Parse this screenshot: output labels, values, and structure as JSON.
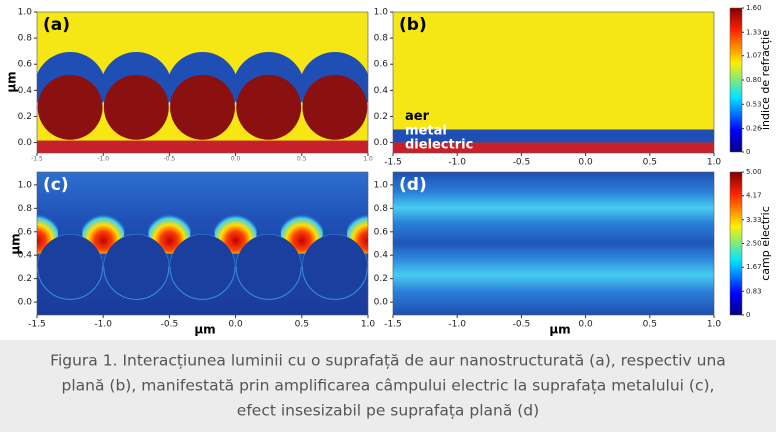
{
  "ylabel": "µm",
  "xlabel": "µm",
  "panels": [
    {
      "label": "(a)",
      "xlim": [
        -1.5,
        1.0
      ],
      "ylim": [
        -0.08,
        1.0
      ],
      "xticks": [
        -1.5,
        {
          "value": -1.0,
          "label": "-1.0"
        },
        -0.5,
        {
          "value": 0.0,
          "label": "0.0"
        },
        0.5,
        {
          "value": 1.0,
          "label": "1.0"
        }
      ],
      "yticks": [
        {
          "value": 1.0,
          "label": "1.0"
        },
        0.8,
        0.6,
        0.4,
        0.2,
        {
          "value": 0.0,
          "label": "0.0"
        }
      ]
    },
    {
      "label": "(b)",
      "xlim": [
        -1.5,
        1.0
      ],
      "ylim": [
        -0.08,
        1.0
      ],
      "xticks": [
        -1.5,
        {
          "value": -1.0,
          "label": "-1.0"
        },
        -0.5,
        {
          "value": 0.0,
          "label": "0.0"
        },
        0.5,
        {
          "value": 1.0,
          "label": "1.0"
        }
      ],
      "yticks": [
        {
          "value": 1.0,
          "label": "1.0"
        },
        0.8,
        0.6,
        0.4,
        0.2,
        {
          "value": 0.0,
          "label": "0.0"
        }
      ],
      "annotations": [
        "aer",
        "metal",
        "dielectric"
      ]
    },
    {
      "label": "(c)",
      "xlim": [
        -1.5,
        1.0
      ],
      "ylim": [
        -0.11,
        1.11
      ],
      "xticks": [
        -1.5,
        {
          "value": -1.0,
          "label": "-1.0"
        },
        -0.5,
        {
          "value": 0.0,
          "label": "0.0"
        },
        0.5,
        {
          "value": 1.0,
          "label": "1.0"
        }
      ],
      "yticks": [
        {
          "value": 1.0,
          "label": "1.0"
        },
        0.8,
        0.6,
        0.4,
        0.2,
        {
          "value": 0.0,
          "label": "0.0"
        }
      ]
    },
    {
      "label": "(d)",
      "xlim": [
        -1.5,
        1.0
      ],
      "ylim": [
        -0.11,
        1.11
      ],
      "xticks": [
        -1.5,
        {
          "value": -1.0,
          "label": "-1.0"
        },
        -0.5,
        {
          "value": 0.0,
          "label": "0.0"
        },
        0.5,
        {
          "value": 1.0,
          "label": "1.0"
        }
      ],
      "yticks": [
        {
          "value": 1.0,
          "label": "1.0"
        },
        0.8,
        0.6,
        0.4,
        0.2,
        {
          "value": 0.0,
          "label": "0.0"
        }
      ]
    }
  ],
  "colorbars": [
    {
      "title": "indice de refracție",
      "lim": [
        0,
        1.6
      ],
      "ticks": [
        {
          "value": 1.6,
          "label": "1.60"
        },
        1.33,
        1.07,
        {
          "value": 0.8,
          "label": "0.80"
        },
        0.53,
        0.26,
        0
      ]
    },
    {
      "title": "camp electric",
      "lim": [
        0,
        5.0
      ],
      "ticks": [
        {
          "value": 5.0,
          "label": "5.00"
        },
        4.17,
        3.33,
        {
          "value": 2.5,
          "label": "2.50"
        },
        1.67,
        0.83,
        0
      ]
    }
  ],
  "caption": [
    "Figura 1. Interacțiunea luminii cu o suprafață de aur nanostructurată (a), respectiv una",
    "plană (b), manifestată prin amplificarea câmpului electric la suprafața metalului (c),",
    "efect insesizabil pe suprafața plană (d)"
  ]
}
